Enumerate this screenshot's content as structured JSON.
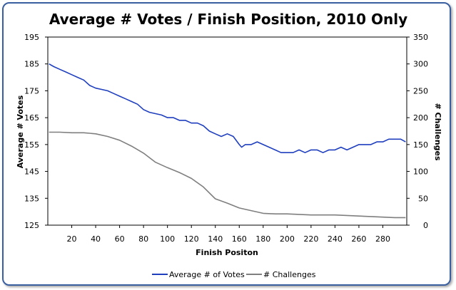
{
  "chart_data": {
    "type": "line",
    "title": "Average # Votes / Finish Position, 2010 Only",
    "xlabel": "Finish Positon",
    "ylabel": "Average # Votes",
    "y2label": "# Challenges",
    "xlim": [
      0,
      300
    ],
    "ylim": [
      125,
      195
    ],
    "y2lim": [
      0,
      350
    ],
    "x_ticks": [
      20,
      40,
      60,
      80,
      100,
      120,
      140,
      160,
      180,
      200,
      220,
      240,
      260,
      280
    ],
    "y_ticks": [
      125,
      135,
      145,
      155,
      165,
      175,
      185,
      195
    ],
    "y2_ticks": [
      0,
      50,
      100,
      150,
      200,
      250,
      300,
      350
    ],
    "legend_position": "bottom",
    "grid": false,
    "series": [
      {
        "name": "Average # of Votes",
        "axis": "left",
        "color": "#1f3fbf",
        "x": [
          1,
          5,
          10,
          15,
          20,
          25,
          30,
          35,
          40,
          45,
          50,
          55,
          60,
          65,
          70,
          75,
          80,
          85,
          90,
          95,
          100,
          105,
          110,
          115,
          120,
          125,
          130,
          135,
          140,
          145,
          150,
          155,
          160,
          162,
          165,
          170,
          175,
          180,
          185,
          190,
          195,
          200,
          205,
          210,
          215,
          220,
          225,
          230,
          235,
          240,
          245,
          250,
          255,
          260,
          265,
          270,
          275,
          280,
          285,
          290,
          295,
          299
        ],
        "y": [
          185,
          184,
          183,
          182,
          181,
          180,
          179,
          177,
          176,
          175.5,
          175,
          174,
          173,
          172,
          171,
          170,
          168,
          167,
          166.5,
          166,
          165,
          165,
          164,
          164,
          163,
          163,
          162,
          160,
          159,
          158,
          159,
          158,
          155,
          154,
          155,
          155,
          156,
          155,
          154,
          153,
          152,
          152,
          152,
          153,
          152,
          153,
          153,
          152,
          153,
          153,
          154,
          153,
          154,
          155,
          155,
          155,
          156,
          156,
          157,
          157,
          157,
          156
        ]
      },
      {
        "name": "# Challenges",
        "axis": "right",
        "color": "#7f7f7f",
        "x": [
          1,
          10,
          20,
          30,
          40,
          50,
          60,
          70,
          80,
          90,
          100,
          110,
          120,
          130,
          140,
          150,
          160,
          170,
          180,
          190,
          200,
          210,
          220,
          230,
          240,
          250,
          260,
          270,
          280,
          290,
          299
        ],
        "y": [
          173,
          173,
          172,
          172,
          170,
          165,
          158,
          147,
          134,
          117,
          107,
          98,
          87,
          71,
          49,
          41,
          32,
          27,
          22,
          21,
          21,
          20,
          19,
          19,
          19,
          18,
          17,
          16,
          15,
          14,
          14
        ]
      }
    ]
  }
}
